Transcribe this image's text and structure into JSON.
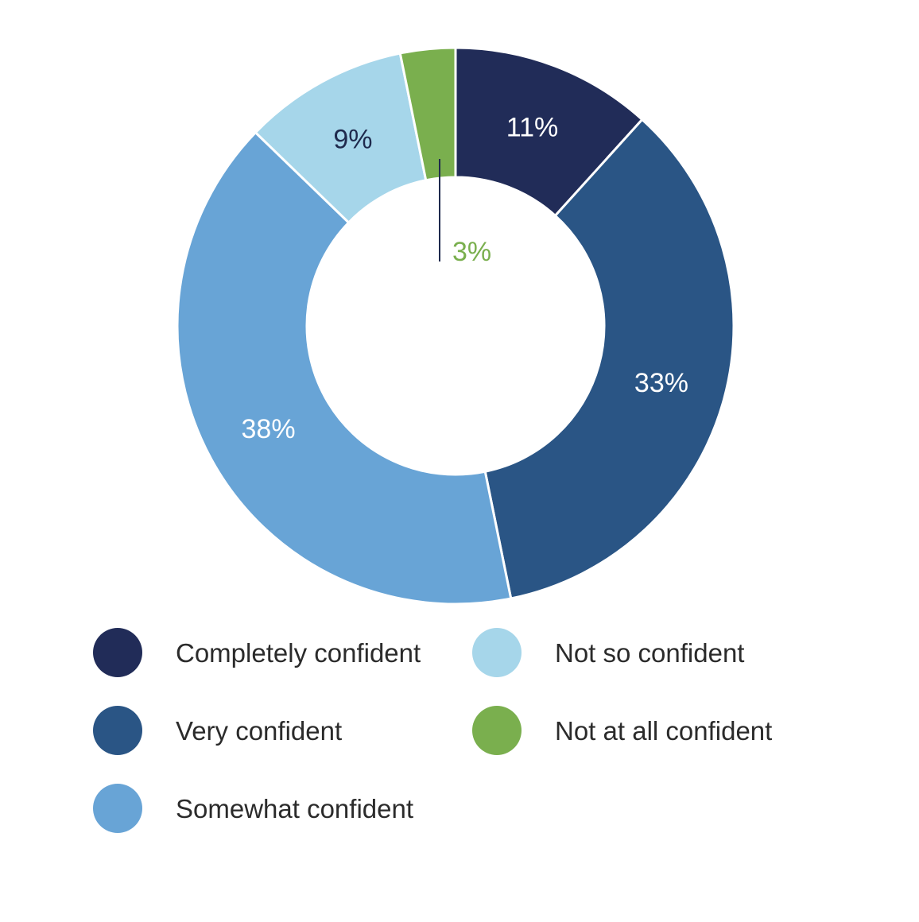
{
  "chart_data": {
    "type": "pie",
    "variant": "donut",
    "title": "",
    "categories": [
      "Completely confident",
      "Very confident",
      "Somewhat confident",
      "Not so confident",
      "Not at all confident"
    ],
    "values": [
      11,
      33,
      38,
      9,
      3
    ],
    "value_labels": [
      "11%",
      "33%",
      "38%",
      "9%",
      "3%"
    ],
    "colors": [
      "#212c58",
      "#2a5585",
      "#68a4d6",
      "#a6d6ea",
      "#7aaf4e"
    ],
    "label_colors": [
      "#ffffff",
      "#ffffff",
      "#ffffff",
      "#1f2a4d",
      "#7aaf4e"
    ],
    "legend_placement": "bottom",
    "legend": [
      {
        "label": "Completely confident",
        "color": "#212c58"
      },
      {
        "label": "Not so confident",
        "color": "#a6d6ea"
      },
      {
        "label": "Very confident",
        "color": "#2a5585"
      },
      {
        "label": "Not at all confident",
        "color": "#7aaf4e"
      },
      {
        "label": "Somewhat confident",
        "color": "#68a4d6"
      }
    ]
  }
}
